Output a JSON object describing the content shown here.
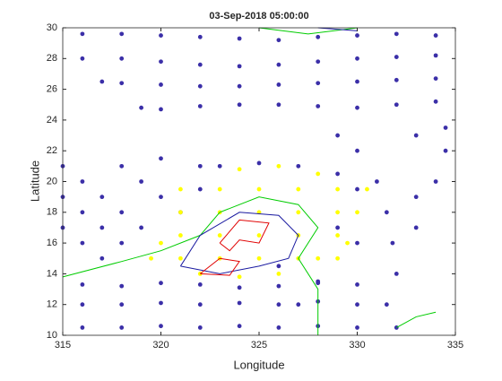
{
  "chart_data": {
    "type": "scatter",
    "title": "03-Sep-2018 05:00:00",
    "xlabel": "Longitude",
    "ylabel": "Latitude",
    "xlim": [
      315,
      335
    ],
    "ylim": [
      10,
      30
    ],
    "xticks": [
      315,
      320,
      325,
      330,
      335
    ],
    "yticks": [
      10,
      12,
      14,
      16,
      18,
      20,
      22,
      24,
      26,
      28,
      30
    ],
    "series": [
      {
        "style": "marker",
        "color": "#3b2fa8",
        "x": [
          316,
          318,
          320,
          322,
          324,
          326,
          328,
          330,
          332,
          334,
          316,
          318,
          320,
          322,
          324,
          326,
          328,
          330,
          332,
          334,
          317,
          318,
          320,
          322,
          324,
          326,
          328,
          330,
          332,
          334,
          319,
          320,
          322,
          324,
          326,
          328,
          330,
          332,
          334,
          334.5,
          315,
          316,
          317,
          318,
          319,
          315,
          316,
          317,
          318,
          315,
          316,
          317,
          319,
          320,
          321,
          318,
          320,
          322,
          316,
          318,
          320,
          322,
          324,
          326,
          328,
          330,
          316,
          318,
          320,
          322,
          324,
          326,
          328,
          330,
          316,
          318,
          320,
          322,
          324,
          326,
          328,
          330,
          331,
          331.5,
          331.8,
          332,
          331.5,
          332,
          333,
          333,
          334,
          334.5,
          330,
          329,
          333,
          323,
          325,
          327,
          329,
          330,
          322,
          329,
          330,
          328,
          326,
          327
        ],
        "y": [
          29.6,
          29.6,
          29.5,
          29.4,
          29.3,
          29.2,
          29.4,
          29.5,
          29.6,
          29.5,
          28,
          28,
          27.8,
          27.6,
          27.5,
          27.6,
          27.8,
          28,
          28.1,
          28.2,
          26.5,
          26.4,
          26.3,
          26.2,
          26.2,
          26.3,
          26.4,
          26.5,
          26.6,
          26.7,
          24.8,
          24.7,
          24.9,
          25,
          25,
          24.9,
          24.8,
          25,
          25.2,
          23.5,
          21,
          20,
          19,
          18,
          17,
          19,
          18,
          17,
          16,
          17,
          16,
          15,
          20,
          19,
          18,
          21,
          21.5,
          21,
          10.5,
          10.5,
          10.6,
          10.5,
          10.6,
          10.5,
          10.6,
          10.5,
          12,
          12,
          12.1,
          12,
          12.1,
          12,
          12.2,
          12,
          13.3,
          13.2,
          13.4,
          13.3,
          13.1,
          13.2,
          13.4,
          13.3,
          20,
          18,
          16,
          14,
          12,
          10.5,
          17,
          19,
          20,
          22,
          22,
          23,
          23,
          21,
          21.2,
          21,
          20.5,
          19.5,
          19.5,
          17,
          16,
          13.5,
          14.5,
          12
        ]
      },
      {
        "style": "marker",
        "color": "#ffff00",
        "x": [
          321,
          323,
          325,
          327,
          329,
          321,
          323,
          325,
          327,
          329,
          321,
          323,
          325,
          327,
          329,
          321,
          323,
          325,
          327,
          329,
          324,
          326,
          328,
          330,
          330.5,
          319.5,
          320,
          322,
          324,
          326,
          328,
          329.5
        ],
        "y": [
          15,
          15,
          15,
          15,
          15,
          16.5,
          16.5,
          16.5,
          16.5,
          16.5,
          18,
          18,
          18,
          18,
          18,
          19.5,
          19.5,
          19.5,
          19.5,
          19.5,
          20.8,
          21,
          20.5,
          18,
          19.5,
          15,
          16,
          14,
          13.8,
          14,
          15,
          16
        ]
      },
      {
        "style": "line",
        "color": "#00cc00",
        "x": [
          315,
          318,
          320,
          322,
          323,
          325,
          327,
          328,
          327,
          328,
          328,
          null,
          325,
          327.5,
          330,
          null,
          332,
          333,
          334
        ],
        "y": [
          13.8,
          14.8,
          15.5,
          16.5,
          18,
          19,
          18.5,
          17,
          15,
          13,
          10,
          null,
          30,
          29.6,
          30,
          null,
          10.5,
          11.2,
          11.5
        ]
      },
      {
        "style": "line",
        "color": "#1a1aa0",
        "x": [
          321,
          322,
          324,
          326,
          327,
          326.5,
          325,
          323,
          321,
          null,
          328,
          330
        ],
        "y": [
          14.5,
          16.5,
          18,
          17.8,
          16.5,
          15,
          14.5,
          14,
          14.5,
          null,
          30,
          29.8
        ]
      },
      {
        "style": "line",
        "color": "#e00000",
        "x": [
          323,
          324,
          325.5,
          325,
          324,
          323.5,
          323,
          null,
          322,
          323,
          324,
          323.5,
          322
        ],
        "y": [
          16,
          17.5,
          17.3,
          16,
          16.2,
          15.5,
          16,
          null,
          14,
          15,
          14.8,
          13.9,
          14
        ]
      }
    ]
  }
}
